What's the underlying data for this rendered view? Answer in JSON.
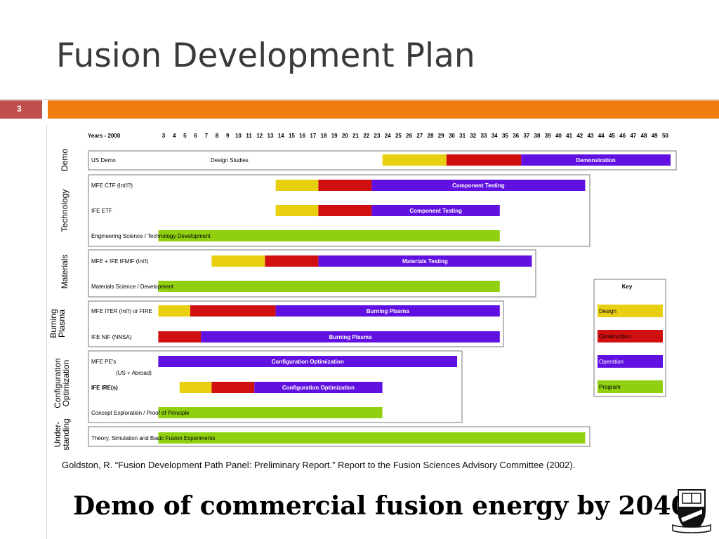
{
  "slide": {
    "title": "Fusion Development Plan",
    "number": "3",
    "citation": "Goldston, R. “Fusion Development Path Panel: Preliminary Report.” Report to the Fusion Sciences Advisory Committee (2002).",
    "headline": "Demo of commercial fusion energy by 2040."
  },
  "chart_data": {
    "type": "gantt",
    "axis_label": "Years - 2000",
    "years": [
      3,
      4,
      5,
      6,
      7,
      8,
      9,
      10,
      11,
      12,
      13,
      14,
      15,
      16,
      17,
      18,
      19,
      20,
      21,
      22,
      23,
      24,
      25,
      26,
      27,
      28,
      29,
      30,
      31,
      32,
      33,
      34,
      35,
      36,
      37,
      38,
      39,
      40,
      41,
      42,
      43,
      44,
      45,
      46,
      47,
      48,
      49,
      50
    ],
    "colors": {
      "Design": "#e8d010",
      "Construction": "#d01010",
      "Operation": "#6010e0",
      "Program": "#90d010"
    },
    "groups": [
      {
        "name": "Demo",
        "rows": [
          "US Demo"
        ]
      },
      {
        "name": "Technology",
        "rows": [
          "MFE CTF (Int'l?)",
          "IFE ETF",
          "Engineering Science / Technology Development"
        ]
      },
      {
        "name": "Materials",
        "rows": [
          "MFE + IFE IFMIF (Int'l)",
          "Materials Science / Development"
        ]
      },
      {
        "name": "Burning Plasma",
        "rows": [
          "MFE ITER (Int'l) or FIRE",
          "IFE NIF (NNSA)"
        ]
      },
      {
        "name": "Configuration Optimization",
        "rows": [
          "MFE PE's",
          "IFE IRE(s)",
          "Concept Exploration / Proof of Principle"
        ]
      },
      {
        "name": "Under-standing",
        "rows": [
          "Theory, Simulation and Basic Fusion Experiments"
        ]
      }
    ],
    "rows": [
      {
        "label": "US Demo",
        "note": "Design Studies",
        "segments": [
          {
            "type": "Design",
            "start": 23.5,
            "end": 29.5
          },
          {
            "type": "Construction",
            "start": 29.5,
            "end": 36.5
          },
          {
            "type": "Operation",
            "start": 36.5,
            "end": 50.5,
            "label": "Demonstration"
          }
        ]
      },
      {
        "label": "MFE CTF (Int'l?)",
        "segments": [
          {
            "type": "Design",
            "start": 13.5,
            "end": 17.5
          },
          {
            "type": "Construction",
            "start": 17.5,
            "end": 22.5
          },
          {
            "type": "Operation",
            "start": 22.5,
            "end": 42.5,
            "label": "Component Testing"
          }
        ]
      },
      {
        "label": "IFE ETF",
        "segments": [
          {
            "type": "Design",
            "start": 13.5,
            "end": 17.5
          },
          {
            "type": "Construction",
            "start": 17.5,
            "end": 22.5
          },
          {
            "type": "Operation",
            "start": 22.5,
            "end": 34.5,
            "label": "Component Testing"
          }
        ]
      },
      {
        "label": "Engineering Science / Technology Development",
        "segments": [
          {
            "type": "Program",
            "start": 2.5,
            "end": 34.5
          }
        ]
      },
      {
        "label": "MFE + IFE IFMIF (Int'l)",
        "segments": [
          {
            "type": "Design",
            "start": 7.5,
            "end": 12.5
          },
          {
            "type": "Construction",
            "start": 12.5,
            "end": 17.5
          },
          {
            "type": "Operation",
            "start": 17.5,
            "end": 37.5,
            "label": "Materials Testing"
          }
        ]
      },
      {
        "label": "Materials Science / Development",
        "segments": [
          {
            "type": "Program",
            "start": 2.5,
            "end": 34.5
          }
        ]
      },
      {
        "label": "MFE ITER (Int'l) or FIRE",
        "segments": [
          {
            "type": "Design",
            "start": 2.5,
            "end": 5.5
          },
          {
            "type": "Construction",
            "start": 5.5,
            "end": 13.5
          },
          {
            "type": "Operation",
            "start": 13.5,
            "end": 34.5,
            "label": "Burning Plasma"
          }
        ]
      },
      {
        "label": "IFE NIF (NNSA)",
        "segments": [
          {
            "type": "Construction",
            "start": 2.5,
            "end": 6.5
          },
          {
            "type": "Operation",
            "start": 6.5,
            "end": 34.5,
            "label": "Burning Plasma"
          }
        ]
      },
      {
        "label": "MFE PE's",
        "sublabel": "(US + Abroad)",
        "segments": [
          {
            "type": "Operation",
            "start": 2.5,
            "end": 30.5,
            "label": "Configuration Optimization"
          }
        ]
      },
      {
        "label": "IFE IRE(s)",
        "segments": [
          {
            "type": "Design",
            "start": 4.5,
            "end": 7.5
          },
          {
            "type": "Construction",
            "start": 7.5,
            "end": 11.5
          },
          {
            "type": "Operation",
            "start": 11.5,
            "end": 23.5,
            "label": "Configuration Optimization"
          }
        ]
      },
      {
        "label": "Concept Exploration / Proof of Principle",
        "segments": [
          {
            "type": "Program",
            "start": 2.5,
            "end": 23.5
          }
        ]
      },
      {
        "label": "Theory, Simulation and Basic Fusion Experiments",
        "segments": [
          {
            "type": "Program",
            "start": 2.5,
            "end": 42.5
          }
        ]
      }
    ],
    "legend": {
      "title": "Key",
      "placement": "right",
      "items": [
        {
          "label": "Design",
          "type": "Design"
        },
        {
          "label": "Construction",
          "type": "Construction"
        },
        {
          "label": "Operation",
          "type": "Operation"
        },
        {
          "label": "Program",
          "type": "Program"
        }
      ]
    }
  }
}
